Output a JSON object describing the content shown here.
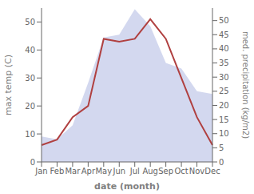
{
  "chart_data": {
    "type": "line",
    "categories": [
      "Jan",
      "Feb",
      "Mar",
      "Apr",
      "May",
      "Jun",
      "Jul",
      "Aug",
      "Sep",
      "Oct",
      "Nov",
      "Dec"
    ],
    "series": [
      {
        "type": "area",
        "axis": "y2",
        "color": "#c0c8e8",
        "values": [
          9,
          8,
          13,
          28,
          44,
          45,
          54,
          48,
          35,
          33,
          25,
          24
        ]
      },
      {
        "type": "line",
        "color": "#b04040",
        "values": [
          6,
          8,
          16,
          20,
          44,
          43,
          44,
          51,
          44,
          30,
          16,
          6
        ]
      }
    ],
    "xlabel": "date (month)",
    "ylabel": "max temp (C)",
    "y2label": "med. precipitation (kg/m2)",
    "ylim": [
      0,
      55
    ],
    "yticks": [
      0,
      10,
      20,
      30,
      40,
      50
    ],
    "y2lim": [
      0,
      54.44
    ],
    "y2ticks": [
      0,
      5,
      10,
      15,
      20,
      25,
      30,
      35,
      40,
      45,
      50
    ],
    "grid": false
  }
}
